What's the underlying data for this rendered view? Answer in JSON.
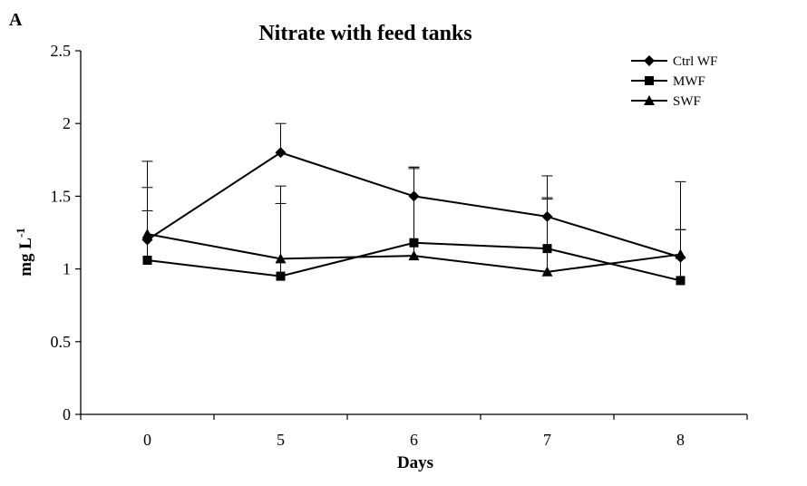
{
  "panel_label": "A",
  "chart_data": {
    "type": "line",
    "title": "Nitrate with feed tanks",
    "xlabel": "Days",
    "ylabel": "mg L",
    "ylabel_superscript": "-1",
    "categories": [
      "0",
      "5",
      "6",
      "7",
      "8"
    ],
    "ylim": [
      0,
      2.5
    ],
    "yticks": [
      0,
      0.5,
      1,
      1.5,
      2,
      2.5
    ],
    "ytick_labels": [
      "0",
      "0.5",
      "1",
      "1.5",
      "2",
      "2.5"
    ],
    "grid": false,
    "legend_position": "top-right",
    "series": [
      {
        "name": "Ctrl WF",
        "marker": "diamond",
        "values": [
          1.2,
          1.8,
          1.5,
          1.36,
          1.08
        ],
        "errors": [
          0.54,
          0.2,
          0.2,
          0.28,
          0.52
        ]
      },
      {
        "name": "MWF",
        "marker": "square",
        "values": [
          1.06,
          0.95,
          1.18,
          1.14,
          0.92
        ],
        "errors": [
          0.34,
          0.5,
          0.52,
          0.35,
          0.35
        ]
      },
      {
        "name": "SWF",
        "marker": "triangle",
        "values": [
          1.24,
          1.07,
          1.09,
          0.98,
          1.1
        ],
        "errors": [
          0.32,
          0.5,
          0.6,
          0.5,
          0.17
        ]
      }
    ]
  }
}
